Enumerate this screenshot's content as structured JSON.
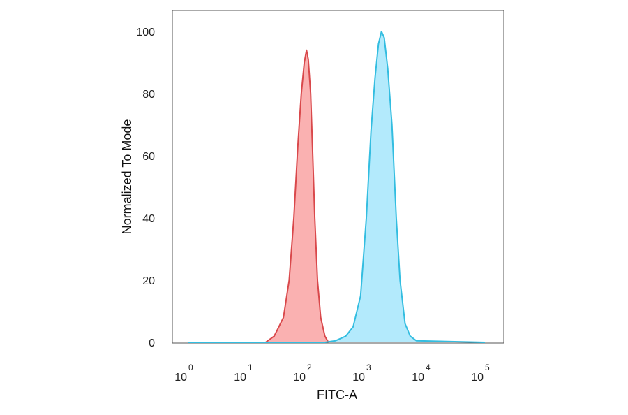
{
  "chart_data": {
    "type": "area",
    "xlabel": "FITC-A",
    "ylabel": "Normalized To Mode",
    "x_scale": "log",
    "xlim": [
      1,
      100000
    ],
    "ylim": [
      0,
      105
    ],
    "x_ticks": [
      {
        "base": "10",
        "exp": "0"
      },
      {
        "base": "10",
        "exp": "1"
      },
      {
        "base": "10",
        "exp": "2"
      },
      {
        "base": "10",
        "exp": "3"
      },
      {
        "base": "10",
        "exp": "4"
      },
      {
        "base": "10",
        "exp": "5"
      }
    ],
    "y_ticks": [
      "0",
      "20",
      "40",
      "60",
      "80",
      "100"
    ],
    "grid": false,
    "legend": "none",
    "series": [
      {
        "fill": "#f9a3a3",
        "stroke": "#d9484b",
        "points": [
          [
            20,
            0
          ],
          [
            28,
            2
          ],
          [
            40,
            8
          ],
          [
            50,
            20
          ],
          [
            60,
            40
          ],
          [
            70,
            63
          ],
          [
            80,
            80
          ],
          [
            90,
            90
          ],
          [
            98,
            94
          ],
          [
            105,
            91
          ],
          [
            115,
            80
          ],
          [
            125,
            60
          ],
          [
            135,
            40
          ],
          [
            150,
            20
          ],
          [
            170,
            8
          ],
          [
            200,
            2
          ],
          [
            230,
            0
          ]
        ]
      },
      {
        "fill": "#a6e6fb",
        "stroke": "#33bde0",
        "points": [
          [
            1,
            0
          ],
          [
            200,
            0
          ],
          [
            300,
            0.5
          ],
          [
            450,
            2
          ],
          [
            600,
            5
          ],
          [
            800,
            15
          ],
          [
            1000,
            40
          ],
          [
            1200,
            68
          ],
          [
            1400,
            85
          ],
          [
            1600,
            96
          ],
          [
            1800,
            100
          ],
          [
            2000,
            98
          ],
          [
            2300,
            88
          ],
          [
            2700,
            70
          ],
          [
            3200,
            40
          ],
          [
            3700,
            20
          ],
          [
            4500,
            6
          ],
          [
            5500,
            2
          ],
          [
            7000,
            0.5
          ],
          [
            100000,
            0
          ]
        ]
      }
    ]
  }
}
